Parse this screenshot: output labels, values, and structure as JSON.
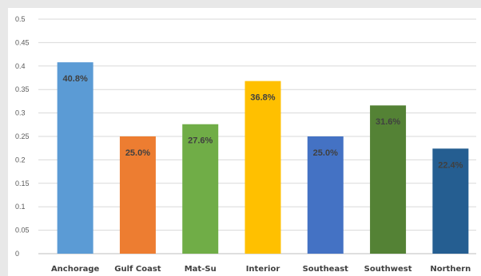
{
  "chart_data": {
    "type": "bar",
    "title": "",
    "xlabel": "",
    "ylabel": "",
    "ylim": [
      0,
      0.5
    ],
    "yticks": [
      0,
      0.05,
      0.1,
      0.15,
      0.2,
      0.25,
      0.3,
      0.35,
      0.4,
      0.45,
      0.5
    ],
    "ytick_labels": [
      "0",
      "0.05",
      "0.1",
      "0.15",
      "0.2",
      "0.25",
      "0.3",
      "0.35",
      "0.4",
      "0.45",
      "0.5"
    ],
    "grid": true,
    "legend": "none",
    "categories": [
      "Anchorage",
      "Gulf Coast",
      "Mat-Su",
      "Interior",
      "Southeast",
      "Southwest",
      "Northern"
    ],
    "values": [
      0.408,
      0.25,
      0.276,
      0.368,
      0.25,
      0.316,
      0.224
    ],
    "data_labels": [
      "40.8%",
      "25.0%",
      "27.6%",
      "36.8%",
      "25.0%",
      "31.6%",
      "22.4%"
    ],
    "colors": [
      "#5b9bd5",
      "#ed7d31",
      "#70ad47",
      "#ffc000",
      "#4472c4",
      "#548235",
      "#255e91"
    ]
  }
}
